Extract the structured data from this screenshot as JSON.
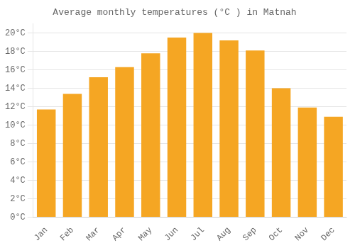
{
  "chart_data": {
    "type": "bar",
    "title": "Average monthly temperatures (°C ) in Matnah",
    "categories": [
      "Jan",
      "Feb",
      "Mar",
      "Apr",
      "May",
      "Jun",
      "Jul",
      "Aug",
      "Sep",
      "Oct",
      "Nov",
      "Dec"
    ],
    "values": [
      11.7,
      13.4,
      15.2,
      16.3,
      17.8,
      19.5,
      20.0,
      19.2,
      18.1,
      14.0,
      11.9,
      10.9
    ],
    "color": "#F5A623",
    "ylim": [
      0,
      21
    ],
    "yticks": [
      {
        "value": 0,
        "label": "0°C"
      },
      {
        "value": 2,
        "label": "2°C"
      },
      {
        "value": 4,
        "label": "4°C"
      },
      {
        "value": 6,
        "label": "6°C"
      },
      {
        "value": 8,
        "label": "8°C"
      },
      {
        "value": 10,
        "label": "10°C"
      },
      {
        "value": 12,
        "label": "12°C"
      },
      {
        "value": 14,
        "label": "14°C"
      },
      {
        "value": 16,
        "label": "16°C"
      },
      {
        "value": 18,
        "label": "18°C"
      },
      {
        "value": 20,
        "label": "20°C"
      }
    ],
    "grid": true
  }
}
